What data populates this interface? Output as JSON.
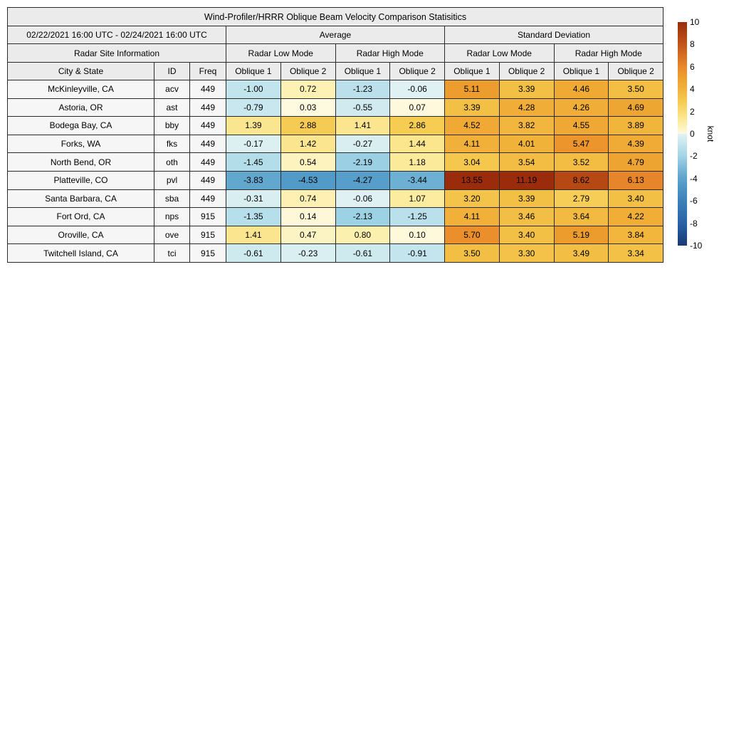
{
  "title": "Wind-Profiler/HRRR Oblique Beam Velocity Comparison Statisitics",
  "header": {
    "date_range": "02/22/2021 16:00 UTC - 02/24/2021 16:00 UTC",
    "group_average": "Average",
    "group_std": "Standard Deviation",
    "radar_site_info": "Radar Site Information",
    "low_mode": "Radar Low Mode",
    "high_mode": "Radar High Mode",
    "col_city": "City & State",
    "col_id": "ID",
    "col_freq": "Freq",
    "oblique1": "Oblique 1",
    "oblique2": "Oblique 2"
  },
  "colorbar": {
    "label": "knot",
    "min": -10,
    "max": 10,
    "ticks": [
      10,
      8,
      6,
      4,
      2,
      0,
      -2,
      -4,
      -6,
      -8,
      -10
    ],
    "colormap": [
      [
        -10,
        "#163a75"
      ],
      [
        -8,
        "#2a62a9"
      ],
      [
        -6,
        "#3c81ba"
      ],
      [
        -5,
        "#4a92c3"
      ],
      [
        -4,
        "#5ca3cc"
      ],
      [
        -3,
        "#7cbad8"
      ],
      [
        -2,
        "#a2d4e6"
      ],
      [
        -1,
        "#c2e4ed"
      ],
      [
        -0.02,
        "#e1f2f3"
      ],
      [
        0.02,
        "#fefae0"
      ],
      [
        1,
        "#fceda2"
      ],
      [
        2,
        "#f9dc74"
      ],
      [
        3,
        "#f5c94e"
      ],
      [
        4,
        "#f1b23a"
      ],
      [
        5,
        "#eda02e"
      ],
      [
        6,
        "#e8882a"
      ],
      [
        8,
        "#c25518"
      ],
      [
        10,
        "#9a2c0c"
      ]
    ]
  },
  "chart_data": {
    "type": "heatmap",
    "title": "Wind-Profiler/HRRR Oblique Beam Velocity Comparison Statisitics",
    "unit": "knot",
    "colorbar_range": [
      -10,
      10
    ],
    "value_columns": [
      "Average Radar Low Mode Oblique 1",
      "Average Radar Low Mode Oblique 2",
      "Average Radar High Mode Oblique 1",
      "Average Radar High Mode Oblique 2",
      "Standard Deviation Radar Low Mode Oblique 1",
      "Standard Deviation Radar Low Mode Oblique 2",
      "Standard Deviation Radar High Mode Oblique 1",
      "Standard Deviation Radar High Mode Oblique 2"
    ],
    "rows": [
      {
        "city": "McKinleyville, CA",
        "id": "acv",
        "freq": "449",
        "values": [
          "-1.00",
          "0.72",
          "-1.23",
          "-0.06",
          "5.11",
          "3.39",
          "4.46",
          "3.50"
        ]
      },
      {
        "city": "Astoria, OR",
        "id": "ast",
        "freq": "449",
        "values": [
          "-0.79",
          "0.03",
          "-0.55",
          "0.07",
          "3.39",
          "4.28",
          "4.26",
          "4.69"
        ]
      },
      {
        "city": "Bodega Bay, CA",
        "id": "bby",
        "freq": "449",
        "values": [
          "1.39",
          "2.88",
          "1.41",
          "2.86",
          "4.52",
          "3.82",
          "4.55",
          "3.89"
        ]
      },
      {
        "city": "Forks, WA",
        "id": "fks",
        "freq": "449",
        "values": [
          "-0.17",
          "1.42",
          "-0.27",
          "1.44",
          "4.11",
          "4.01",
          "5.47",
          "4.39"
        ]
      },
      {
        "city": "North Bend, OR",
        "id": "oth",
        "freq": "449",
        "values": [
          "-1.45",
          "0.54",
          "-2.19",
          "1.18",
          "3.04",
          "3.54",
          "3.52",
          "4.79"
        ]
      },
      {
        "city": "Platteville, CO",
        "id": "pvl",
        "freq": "449",
        "values": [
          "-3.83",
          "-4.53",
          "-4.27",
          "-3.44",
          "13.55",
          "11.19",
          "8.62",
          "6.13"
        ]
      },
      {
        "city": "Santa Barbara, CA",
        "id": "sba",
        "freq": "449",
        "values": [
          "-0.31",
          "0.74",
          "-0.06",
          "1.07",
          "3.20",
          "3.39",
          "2.79",
          "3.40"
        ]
      },
      {
        "city": "Fort Ord, CA",
        "id": "nps",
        "freq": "915",
        "values": [
          "-1.35",
          "0.14",
          "-2.13",
          "-1.25",
          "4.11",
          "3.46",
          "3.64",
          "4.22"
        ]
      },
      {
        "city": "Oroville, CA",
        "id": "ove",
        "freq": "915",
        "values": [
          "1.41",
          "0.47",
          "0.80",
          "0.10",
          "5.70",
          "3.40",
          "5.19",
          "3.84"
        ]
      },
      {
        "city": "Twitchell Island, CA",
        "id": "tci",
        "freq": "915",
        "values": [
          "-0.61",
          "-0.23",
          "-0.61",
          "-0.91",
          "3.50",
          "3.30",
          "3.49",
          "3.34"
        ]
      }
    ]
  }
}
